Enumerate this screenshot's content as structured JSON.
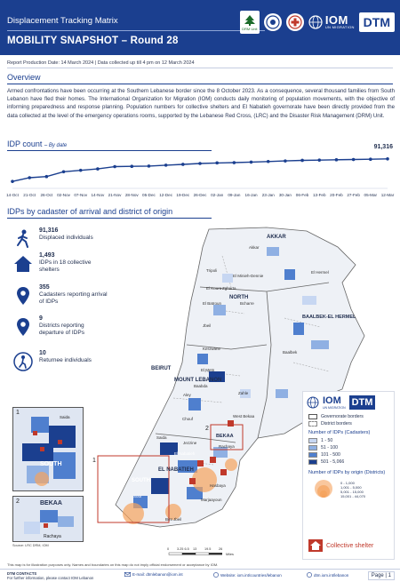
{
  "header": {
    "subtitle": "Displacement Tracking Matrix",
    "title": "MOBILITY SNAPSHOT – Round 28",
    "iom_text": "IOM",
    "iom_sub": "UN MIGRATION",
    "dtm_text": "DTM",
    "cedar_caption": "DRM Unit"
  },
  "meta": {
    "production": "Report Production Date: 14 March 2024 | Data collected up till 4 pm on 12 March 2024"
  },
  "overview": {
    "heading": "Overview",
    "text": "Armed confrontations have been occurring at the Southern Lebanese border since the 8 October 2023. As a consequence, several thousand families from South Lebanon have fled their homes. The International Organization for Migration (IOM) conducts daily monitoring of population movements, with the objective of informing preparedness and response planning. Population numbers for collective shelters and El Nabatieh governorate have been directly provided from the data collected at the level of the emergency operations rooms, supported by the Lebanese Red Cross, (LRC) and the Disaster Risk Management (DRM) Unit."
  },
  "idp_count": {
    "heading": "IDP count",
    "subheading": "– By date",
    "end_value": "91,316"
  },
  "chart_data": {
    "type": "line",
    "title": "IDP count",
    "subtitle": "By date",
    "categories": [
      "14-Oct",
      "21-Oct",
      "26-Oct",
      "02-Nov",
      "07-Nov",
      "14-Nov",
      "21-Nov",
      "28-Nov",
      "05-Dec",
      "12-Dec",
      "19-Dec",
      "26-Dec",
      "02-Jan",
      "09-Jan",
      "16-Jan",
      "23-Jan",
      "30-Jan",
      "06-Feb",
      "13-Feb",
      "20-Feb",
      "27-Feb",
      "05-Mar",
      "12-Mar"
    ],
    "values": [
      12000,
      25000,
      29000,
      46000,
      51000,
      56000,
      64000,
      65000,
      66000,
      69000,
      72000,
      75000,
      77000,
      78000,
      80000,
      82000,
      84000,
      86000,
      87000,
      88000,
      89000,
      90000,
      91316
    ],
    "labeled_point": {
      "x": "12-Mar",
      "label": "91,316"
    },
    "grid": false,
    "color": "#1b3f8f"
  },
  "idp_cadaster": {
    "heading": "IDPs by cadaster of arrival and district of origin"
  },
  "stats": [
    {
      "value": "91,316",
      "label": "Displaced individuals",
      "icon": "walking-person-icon"
    },
    {
      "value": "1,493",
      "label": "IDPs in 18 collective shelters",
      "icon": "shelter-icon"
    },
    {
      "value": "355",
      "label": "Cadasters reporting arrival of IDPs",
      "icon": "location-pin-icon"
    },
    {
      "value": "9",
      "label": "Districts reporting departure of IDPs",
      "icon": "location-pin-icon"
    },
    {
      "value": "10",
      "label": "Returnee individuals",
      "icon": "returnee-icon"
    }
  ],
  "map": {
    "labels": {
      "akkar": "AKKAR",
      "north": "NORTH",
      "baalbek": "BAALBEK-EL HERMEL",
      "beirut": "BEIRUT",
      "mount_lebanon": "MOUNT LEBANON",
      "bekaa": "BEKAA",
      "south": "SOUTH",
      "nabatieh": "EL NABATIEH",
      "akkar_d": "Akkar",
      "tripoli": "Tripoli",
      "minieh": "El Minieh-Dennie",
      "zgharta": "Zgharta",
      "koura": "El Koura",
      "batroun": "El Batroun",
      "bcharre": "Bcharre",
      "jbeil": "Jbeil",
      "kesrwane": "Kesrwane",
      "metn": "El Metn",
      "baabda": "Baabda",
      "aley": "Aley",
      "chouf": "Chouf",
      "zahle": "Zahle",
      "hermel": "El Hermel",
      "baalbek_d": "Baalbek",
      "west_bekaa": "West Bekaa",
      "rachaya": "Rachaya",
      "saida": "Saida",
      "jezzine": "Jezzine",
      "tyre": "Sour",
      "nabatieh_d": "El Nabatieh",
      "marjaayoun": "Marjaayoun",
      "hasbaya": "Hasbaya",
      "bint_jbeil": "Bint Jbeil"
    },
    "insets": [
      {
        "number": "1",
        "label": "SOUTH",
        "sublabel": "Saida",
        "source": "Source: LRC DRM, IOM"
      },
      {
        "number": "2",
        "label": "BEKAA",
        "sublabel": "Rachaya"
      }
    ],
    "box_labels": [
      "1",
      "2"
    ],
    "inset_map_label": "Source: LRC DRM, IOM",
    "scale_labels": [
      "0",
      "3.25 6.5",
      "13",
      "19.5",
      "26"
    ],
    "scale_unit": "Miles"
  },
  "legend": {
    "iom": "IOM",
    "iom_sub": "UN MIGRATION",
    "dtm": "DTM",
    "gov_borders": "Governorate borders",
    "district_borders": "District borders",
    "cadasters_heading": "Number of IDPs (Cadasters)",
    "cadaster_bins": [
      {
        "label": "1 - 50",
        "color": "#c7d7f2"
      },
      {
        "label": "51 - 100",
        "color": "#8fb0e3"
      },
      {
        "label": "101 - 500",
        "color": "#4f7fce"
      },
      {
        "label": "501 - 5,066",
        "color": "#1b3f8f"
      }
    ],
    "origin_heading": "Number of IDPs by origin (Districts)",
    "origin_bins": [
      "0 - 1,000",
      "1,001 - 5,000",
      "5,001 - 15,000",
      "15,001 - 44,070"
    ],
    "shelter_label": "Collective shelter",
    "shelter_color": "#c0392b",
    "origin_color": "#f5a25d"
  },
  "footer": {
    "disclaimer": "This map is for illustration purposes only. Names and boundaries on this map do not imply official endorsement or acceptance by IOM.",
    "contacts_title": "DTM CONTACTS",
    "contacts_text": "For further information, please contact IOM Lebanon",
    "email": "E-mail: dtmlebanon@iom.int",
    "website": "Website: iom.int/countries/lebanon",
    "site2": "dtm.iom.int/lebanon",
    "page": "Page | 1"
  }
}
